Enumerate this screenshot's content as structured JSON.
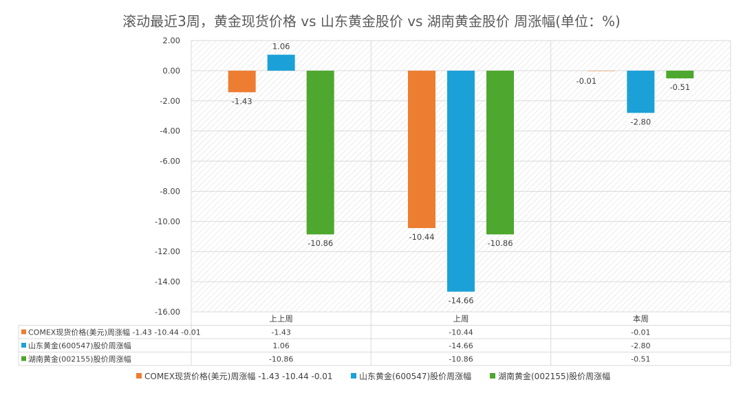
{
  "chart_data": {
    "type": "bar",
    "title": "滚动最近3周，黄金现货价格 vs 山东黄金股价 vs 湖南黄金股价 周涨幅(单位：%)",
    "categories": [
      "上上周",
      "上周",
      "本周"
    ],
    "series": [
      {
        "name": "COMEX现货价格(美元)周涨幅 -1.43 -10.44 -0.01",
        "color": "#ED7D31",
        "values": [
          -1.43,
          -10.44,
          -0.01
        ]
      },
      {
        "name": "山东黄金(600547)股价周涨幅",
        "color": "#1BA1D8",
        "values": [
          1.06,
          -14.66,
          -2.8
        ]
      },
      {
        "name": "湖南黄金(002155)股价周涨幅",
        "color": "#4EA72E",
        "values": [
          -10.86,
          -10.86,
          -0.51
        ]
      }
    ],
    "ylim": [
      -16,
      2
    ],
    "ytick_step": 2,
    "grid": true,
    "legend": "bottom",
    "data_table": true
  }
}
